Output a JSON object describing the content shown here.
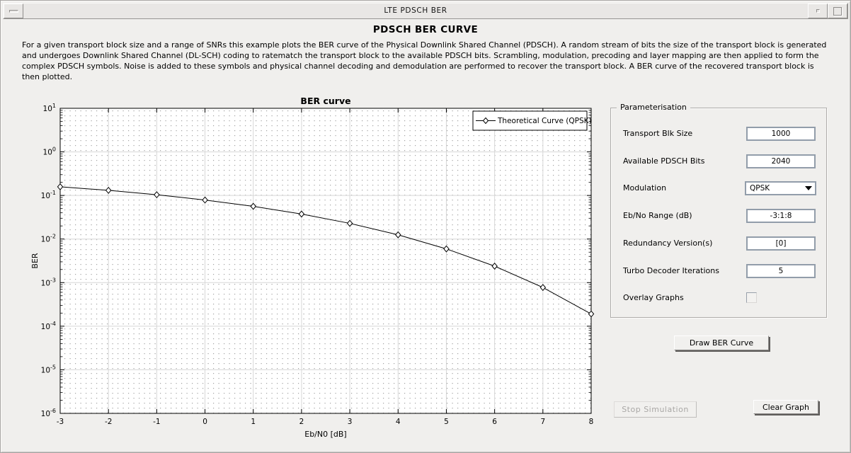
{
  "window": {
    "title": "LTE PDSCH BER"
  },
  "header": {
    "title": "PDSCH BER CURVE",
    "description": "For a given transport block size and a range of SNRs this example plots the BER curve of the Physical Downlink Shared Channel (PDSCH). A random stream of bits the size of the transport block is generated and undergoes Downlink Shared Channel (DL-SCH) coding to ratematch the transport block to the available PDSCH bits. Scrambling, modulation, precoding and layer mapping are then applied to form the complex PDSCH symbols. Noise is added to these symbols and physical channel decoding and demodulation are performed to recover the transport block. A BER curve of the recovered transport block is then plotted."
  },
  "chart_data": {
    "type": "line",
    "title": "BER curve",
    "xlabel": "Eb/N0 [dB]",
    "ylabel": "BER",
    "xlim": [
      -3,
      8
    ],
    "x_ticks": [
      -3,
      -2,
      -1,
      0,
      1,
      2,
      3,
      4,
      5,
      6,
      7,
      8
    ],
    "y_scale": "log",
    "ylim_exponents": [
      -6,
      1
    ],
    "grid": true,
    "minor_grid": true,
    "legend_position": "top-right",
    "series": [
      {
        "name": "Theoretical Curve (QPSK)",
        "marker": "diamond",
        "line_color": "#000000",
        "x": [
          -3,
          -2,
          -1,
          0,
          1,
          2,
          3,
          4,
          5,
          6,
          7,
          8
        ],
        "y": [
          0.158,
          0.131,
          0.104,
          0.0786,
          0.0563,
          0.0375,
          0.0229,
          0.0125,
          0.00595,
          0.00239,
          0.000773,
          0.000191
        ]
      }
    ]
  },
  "panel": {
    "title": "Parameterisation",
    "fields": [
      {
        "label": "Transport Blk Size",
        "type": "text",
        "value": "1000"
      },
      {
        "label": "Available PDSCH Bits",
        "type": "text",
        "value": "2040"
      },
      {
        "label": "Modulation",
        "type": "dropdown",
        "value": "QPSK"
      },
      {
        "label": "Eb/No Range (dB)",
        "type": "text",
        "value": "-3:1:8"
      },
      {
        "label": "Redundancy Version(s)",
        "type": "text",
        "value": "[0]"
      },
      {
        "label": "Turbo Decoder Iterations",
        "type": "text",
        "value": "5"
      },
      {
        "label": "Overlay Graphs",
        "type": "checkbox",
        "checked": false
      }
    ]
  },
  "buttons": {
    "draw": "Draw BER Curve",
    "stop": "Stop Simulation",
    "clear": "Clear Graph"
  },
  "colors": {
    "window_bg": "#f0efed",
    "titlebar_bg": "#e9e7e5",
    "plot_bg": "#ffffff",
    "major_grid": "#d7d7d7",
    "minor_grid_dots": "#a2a2a2",
    "curve": "#000000"
  }
}
